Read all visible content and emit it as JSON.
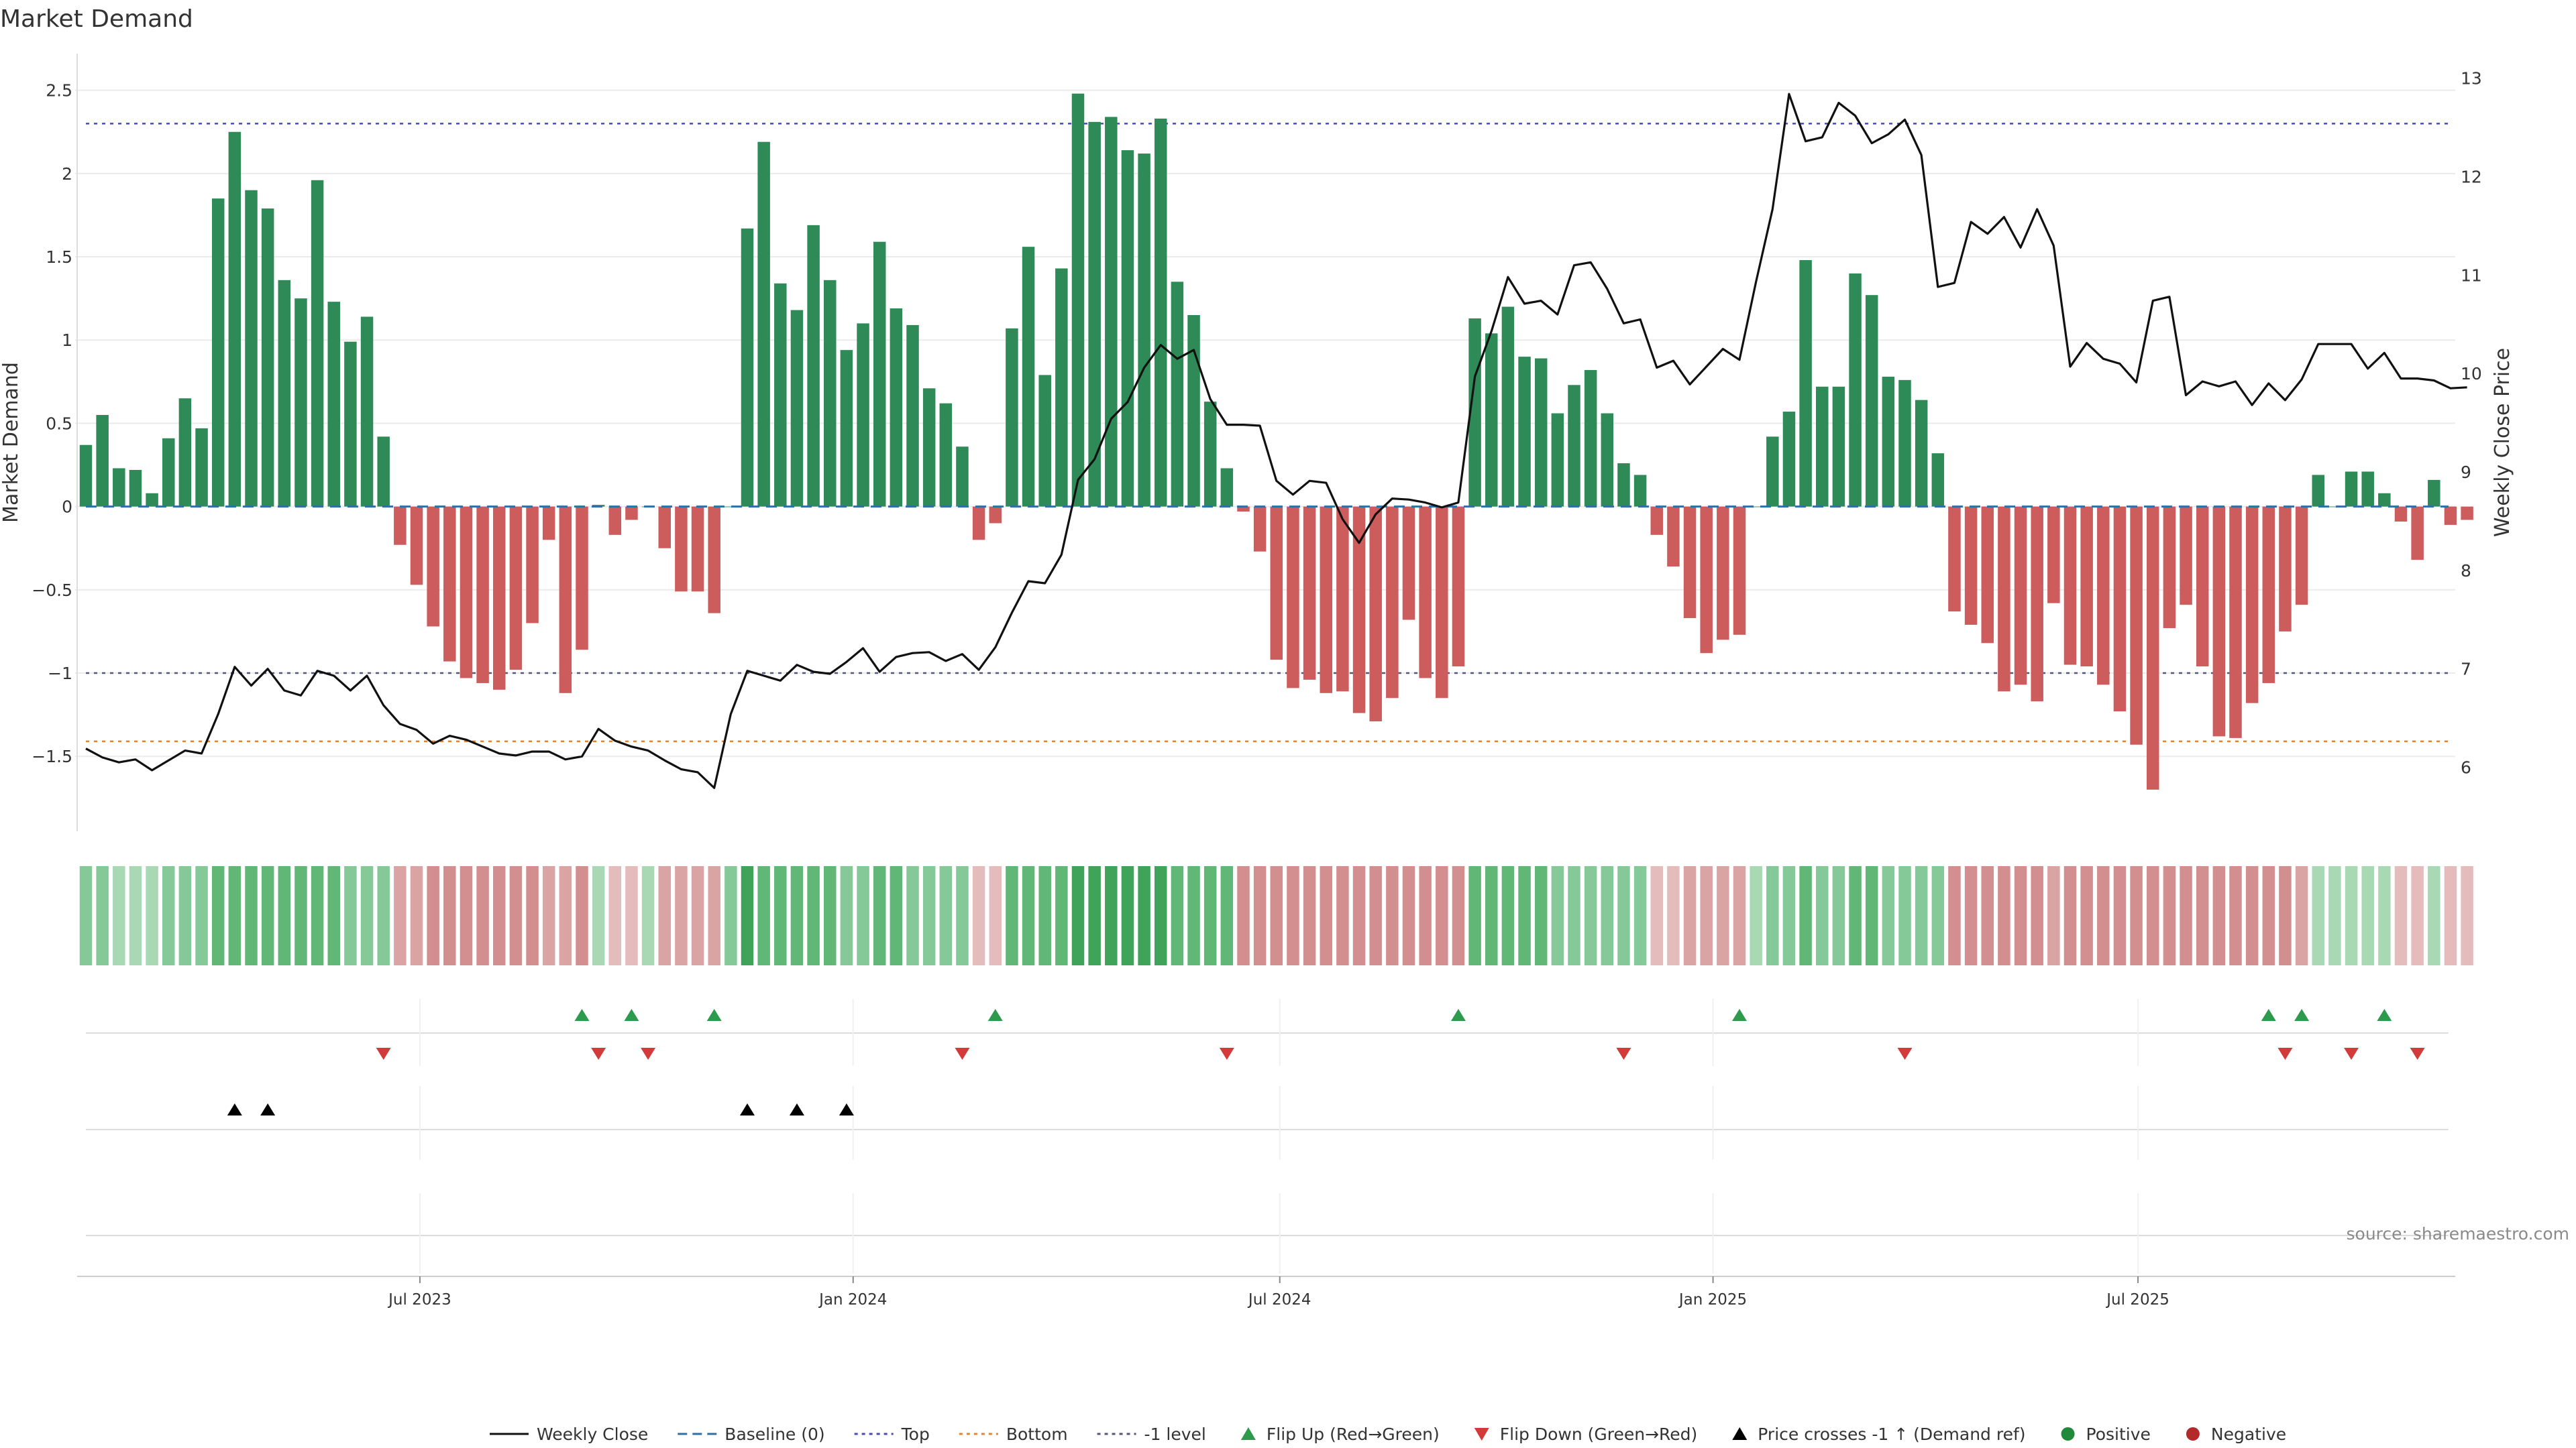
{
  "chart_data": {
    "type": "bar+line",
    "title": "Market Demand",
    "ylabel_left": "Market Demand",
    "ylabel_right": "Weekly Close Price",
    "source": "source: sharemaestro.com",
    "ylim_left": [
      -1.95,
      2.72
    ],
    "ylim_right": [
      5.35,
      13.25
    ],
    "yticks_left": [
      2.5,
      2,
      1.5,
      1,
      0.5,
      0,
      -0.5,
      -1,
      -1.5
    ],
    "yticks_left_labels": [
      "2.5",
      "2",
      "1.5",
      "1",
      "0.5",
      "0",
      "−0.5",
      "−1",
      "−1.5"
    ],
    "yticks_right": [
      13,
      12,
      11,
      10,
      9,
      8,
      7,
      6
    ],
    "yticks_right_labels": [
      "13",
      "12",
      "11",
      "10",
      "9",
      "8",
      "7",
      "6"
    ],
    "reference_levels": {
      "top": 2.3,
      "bottom": -1.41,
      "minus_one": -1.0,
      "baseline": 0
    },
    "x_start_index": 0,
    "x_ticks": [
      {
        "index": 20.2,
        "label": "Jul 2023"
      },
      {
        "index": 46.4,
        "label": "Jan 2024"
      },
      {
        "index": 72.2,
        "label": "Jul 2024"
      },
      {
        "index": 98.4,
        "label": "Jan 2025"
      },
      {
        "index": 124.1,
        "label": "Jul 2025"
      }
    ],
    "demand": [
      0.37,
      0.55,
      0.23,
      0.22,
      0.08,
      0.41,
      0.65,
      0.47,
      1.85,
      2.25,
      1.9,
      1.79,
      1.36,
      1.25,
      1.96,
      1.23,
      0.99,
      1.14,
      0.42,
      -0.23,
      -0.47,
      -0.72,
      -0.93,
      -1.03,
      -1.06,
      -1.1,
      -0.98,
      -0.7,
      -0.2,
      -1.12,
      -0.86,
      0.01,
      -0.17,
      -0.08,
      0.0,
      -0.25,
      -0.51,
      -0.51,
      -0.64,
      0.0,
      1.67,
      2.19,
      1.34,
      1.18,
      1.69,
      1.36,
      0.94,
      1.1,
      1.59,
      1.19,
      1.09,
      0.71,
      0.62,
      0.36,
      -0.2,
      -0.1,
      1.07,
      1.56,
      0.79,
      1.43,
      2.48,
      2.31,
      2.34,
      2.14,
      2.12,
      2.33,
      1.35,
      1.15,
      0.63,
      0.23,
      -0.03,
      -0.27,
      -0.92,
      -1.09,
      -1.04,
      -1.12,
      -1.11,
      -1.24,
      -1.29,
      -1.15,
      -0.68,
      -1.03,
      -1.15,
      -0.96,
      1.13,
      1.04,
      1.2,
      0.9,
      0.89,
      0.56,
      0.73,
      0.82,
      0.56,
      0.26,
      0.19,
      -0.17,
      -0.36,
      -0.67,
      -0.88,
      -0.8,
      -0.77,
      0.0,
      0.42,
      0.57,
      1.48,
      0.72,
      0.72,
      1.4,
      1.27,
      0.78,
      0.76,
      0.64,
      0.32,
      -0.63,
      -0.71,
      -0.82,
      -1.11,
      -1.07,
      -1.17,
      -0.58,
      -0.95,
      -0.96,
      -1.07,
      -1.23,
      -1.43,
      -1.7,
      -0.73,
      -0.59,
      -0.96,
      -1.38,
      -1.39,
      -1.18,
      -1.06,
      -0.75,
      -0.59,
      0.19,
      0.0,
      0.21,
      0.21,
      0.08,
      -0.09,
      -0.32,
      0.16,
      -0.11,
      -0.08
    ],
    "price": [
      6.19,
      6.1,
      6.05,
      6.08,
      5.97,
      6.07,
      6.17,
      6.14,
      6.54,
      7.02,
      6.83,
      7.0,
      6.78,
      6.73,
      6.98,
      6.93,
      6.78,
      6.93,
      6.63,
      6.44,
      6.38,
      6.24,
      6.32,
      6.28,
      6.21,
      6.14,
      6.12,
      6.16,
      6.16,
      6.08,
      6.11,
      6.39,
      6.27,
      6.21,
      6.17,
      6.07,
      5.98,
      5.95,
      5.79,
      6.54,
      6.98,
      6.93,
      6.88,
      7.04,
      6.97,
      6.95,
      7.07,
      7.21,
      6.97,
      7.12,
      7.16,
      7.17,
      7.08,
      7.15,
      6.99,
      7.22,
      7.57,
      7.89,
      7.87,
      8.16,
      8.92,
      9.13,
      9.54,
      9.71,
      10.06,
      10.29,
      10.15,
      10.24,
      9.74,
      9.48,
      9.48,
      9.47,
      8.91,
      8.77,
      8.91,
      8.89,
      8.52,
      8.28,
      8.57,
      8.73,
      8.72,
      8.69,
      8.64,
      8.69,
      9.97,
      10.43,
      10.98,
      10.71,
      10.74,
      10.6,
      11.1,
      11.13,
      10.86,
      10.51,
      10.55,
      10.06,
      10.13,
      9.89,
      10.07,
      10.25,
      10.14,
      10.93,
      11.67,
      12.84,
      12.36,
      12.4,
      12.75,
      12.62,
      12.34,
      12.43,
      12.58,
      12.22,
      10.88,
      10.92,
      11.54,
      11.42,
      11.59,
      11.28,
      11.67,
      11.3,
      10.07,
      10.31,
      10.15,
      10.1,
      9.91,
      10.74,
      10.78,
      9.78,
      9.92,
      9.87,
      9.92,
      9.68,
      9.9,
      9.73,
      9.94,
      10.3,
      10.3,
      10.3,
      10.05,
      10.21,
      9.95,
      9.95,
      9.93,
      9.85,
      9.86
    ],
    "heat_strength": [
      2,
      2,
      1,
      1,
      1,
      2,
      2,
      2,
      3,
      3,
      3,
      3,
      3,
      3,
      3,
      3,
      2,
      2,
      2,
      2,
      2,
      3,
      3,
      3,
      3,
      3,
      3,
      3,
      2,
      2,
      3,
      1,
      1,
      1,
      1,
      2,
      2,
      2,
      2,
      2,
      4,
      3,
      3,
      3,
      3,
      3,
      2,
      2,
      3,
      3,
      2,
      2,
      2,
      2,
      1,
      1,
      3,
      3,
      3,
      3,
      4,
      4,
      4,
      4,
      4,
      4,
      3,
      3,
      3,
      3,
      3,
      3,
      3,
      3,
      3,
      3,
      3,
      3,
      3,
      3,
      3,
      3,
      3,
      3,
      3,
      3,
      3,
      3,
      3,
      2,
      2,
      2,
      2,
      2,
      2,
      1,
      1,
      2,
      2,
      2,
      2,
      1,
      2,
      2,
      3,
      2,
      2,
      3,
      3,
      2,
      2,
      2,
      2,
      3,
      3,
      3,
      3,
      3,
      3,
      2,
      3,
      3,
      3,
      3,
      3,
      3,
      3,
      3,
      3,
      3,
      3,
      3,
      3,
      3,
      2,
      1,
      1,
      1,
      1,
      1,
      1,
      1,
      1,
      1,
      1
    ],
    "flip_up_indices": [
      30,
      33,
      38,
      55,
      83,
      100,
      132,
      134,
      139
    ],
    "flip_down_indices": [
      18,
      31,
      34,
      53,
      69,
      93,
      110,
      133,
      137,
      141
    ],
    "price_cross_indices": [
      9,
      11,
      40,
      43,
      46
    ],
    "legend": [
      {
        "key": "weekly_close",
        "label": "Weekly Close",
        "color": "#111111"
      },
      {
        "key": "baseline",
        "label": "Baseline (0)",
        "color": "#2f6fa8"
      },
      {
        "key": "top",
        "label": "Top",
        "color": "#4a4ab0"
      },
      {
        "key": "bottom",
        "label": "Bottom",
        "color": "#e0852a"
      },
      {
        "key": "minus_one",
        "label": "-1 level",
        "color": "#555577"
      },
      {
        "key": "flip_up",
        "label": "Flip Up (Red→Green)",
        "color": "#2e9a4e"
      },
      {
        "key": "flip_down",
        "label": "Flip Down (Green→Red)",
        "color": "#d33a3a"
      },
      {
        "key": "cross",
        "label": "Price crosses -1 ↑ (Demand ref)",
        "color": "#000000"
      },
      {
        "key": "positive",
        "label": "Positive",
        "color": "#1f8a3a"
      },
      {
        "key": "negative",
        "label": "Negative",
        "color": "#b32a2a"
      }
    ]
  },
  "colors": {
    "bar_positive": "#2e8b57",
    "bar_negative": "#cd5c5c",
    "price_line": "#111111",
    "heat_positive": [
      "#cde9d4",
      "#a8d8b4",
      "#86c998",
      "#61b776",
      "#3fa35a"
    ],
    "heat_negative": [
      "#ecd2d2",
      "#e4bcbc",
      "#dba4a4",
      "#d38f8f",
      "#c97a7a"
    ]
  }
}
